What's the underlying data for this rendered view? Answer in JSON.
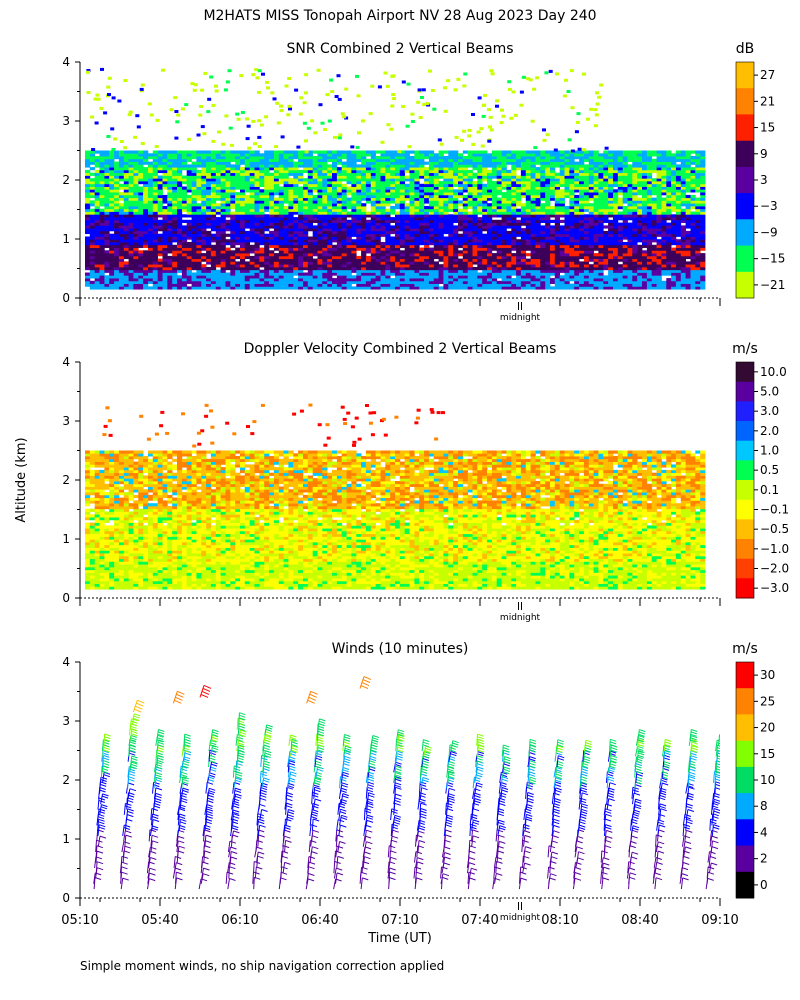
{
  "page_title": "M2HATS MISS Tonopah Airport NV  28 Aug 2023 Day 240",
  "footer_note": "Simple moment winds, no ship navigation correction applied",
  "x_axis": {
    "label": "Time (UT)",
    "ticks": [
      "05:10",
      "05:40",
      "06:10",
      "06:40",
      "07:10",
      "07:40",
      "08:10",
      "08:40",
      "09:10"
    ],
    "marker": "midnight",
    "marker_time": "07:55"
  },
  "y_axis_label": "Altitude (km)",
  "panels": [
    {
      "id": "snr",
      "title": "SNR Combined 2 Vertical Beams",
      "unit": "dB",
      "yticks": [
        "0",
        "1",
        "2",
        "3",
        "4"
      ],
      "colorbar": {
        "labels": [
          "27",
          "21",
          "15",
          "9",
          "3",
          "−3",
          "−9",
          "−15",
          "−21"
        ],
        "colors": [
          "#ffbe00",
          "#ff8200",
          "#ff2000",
          "#3c005a",
          "#5a00a0",
          "#0000ff",
          "#00aaff",
          "#00ff50",
          "#c8ff00"
        ]
      }
    },
    {
      "id": "doppler",
      "title": "Doppler Velocity Combined 2 Vertical Beams",
      "unit": "m/s",
      "yticks": [
        "0",
        "1",
        "2",
        "3",
        "4"
      ],
      "colorbar": {
        "labels": [
          "10.0",
          "5.0",
          "3.0",
          "2.0",
          "1.0",
          "0.5",
          "0.1",
          "−0.1",
          "−0.5",
          "−1.0",
          "−2.0",
          "−3.0"
        ],
        "colors": [
          "#320a32",
          "#5a00a0",
          "#2020ff",
          "#0064ff",
          "#00c8ff",
          "#00ff50",
          "#c8ff00",
          "#ffff00",
          "#ffbe00",
          "#ff8200",
          "#ff4000",
          "#ff0000"
        ]
      }
    },
    {
      "id": "winds",
      "title": "Winds (10 minutes)",
      "unit": "m/s",
      "yticks": [
        "0",
        "1",
        "2",
        "3",
        "4"
      ],
      "colorbar": {
        "labels": [
          "30",
          "25",
          "20",
          "15",
          "10",
          "8",
          "4",
          "2",
          "0"
        ],
        "colors": [
          "#ff0000",
          "#ff8200",
          "#ffbe00",
          "#82ff00",
          "#00dc64",
          "#00aaff",
          "#0000ff",
          "#5a00a0",
          "#000000"
        ]
      }
    }
  ],
  "chart_data": [
    {
      "type": "heatmap",
      "title": "SNR Combined 2 Vertical Beams",
      "unit": "dB",
      "x_range": [
        "05:10",
        "09:10"
      ],
      "y_range_km": [
        0,
        4
      ],
      "layers_dB": [
        {
          "alt_km": [
            0.1,
            0.5
          ],
          "approx_dB": -9
        },
        {
          "alt_km": [
            0.4,
            0.9
          ],
          "approx_dB": 12
        },
        {
          "alt_km": [
            0.8,
            1.4
          ],
          "approx_dB": -3
        },
        {
          "alt_km": [
            1.4,
            2.2
          ],
          "approx_dB": -15
        },
        {
          "alt_km": [
            2.2,
            2.5
          ],
          "approx_dB": -9
        },
        {
          "alt_km": [
            2.5,
            4.0
          ],
          "approx_dB": -21
        }
      ]
    },
    {
      "type": "heatmap",
      "title": "Doppler Velocity Combined 2 Vertical Beams",
      "unit": "m/s",
      "x_range": [
        "05:10",
        "09:10"
      ],
      "y_range_km": [
        0,
        4
      ],
      "layers_ms": [
        {
          "alt_km": [
            0.1,
            0.6
          ],
          "approx_ms": 0.1
        },
        {
          "alt_km": [
            0.6,
            1.5
          ],
          "approx_ms": -0.1
        },
        {
          "alt_km": [
            1.5,
            2.5
          ],
          "approx_ms": -0.8
        },
        {
          "alt_km": [
            2.9,
            3.3
          ],
          "approx_ms": -1.5
        }
      ]
    },
    {
      "type": "scatter",
      "title": "Winds (10 minutes)",
      "unit": "m/s",
      "x_range": [
        "05:10",
        "09:10"
      ],
      "y_range_km": [
        0,
        4
      ],
      "profile_times": [
        "05:15",
        "05:25",
        "05:35",
        "05:45",
        "05:55",
        "06:05",
        "06:15",
        "06:25",
        "06:35",
        "06:45",
        "06:55",
        "07:05",
        "07:15",
        "07:25",
        "07:35",
        "07:45",
        "07:55",
        "08:05",
        "08:15",
        "08:25",
        "08:35",
        "08:45",
        "08:55",
        "09:05"
      ],
      "speed_profile": [
        {
          "alt_km": 0.5,
          "speed_ms": 3
        },
        {
          "alt_km": 1.5,
          "speed_ms": 6
        },
        {
          "alt_km": 2.2,
          "speed_ms": 9
        },
        {
          "alt_km": 2.8,
          "speed_ms": 13
        },
        {
          "alt_km": 3.3,
          "speed_ms": 22
        }
      ]
    }
  ]
}
